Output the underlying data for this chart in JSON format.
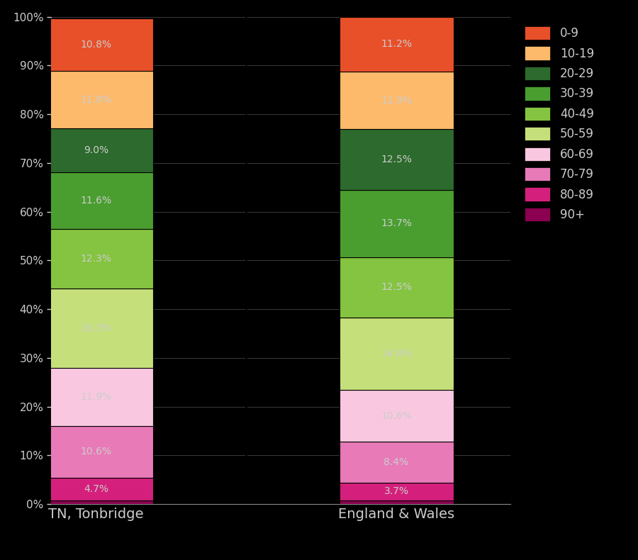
{
  "categories": [
    "TN, Tonbridge",
    "England & Wales"
  ],
  "age_groups_bottom_to_top": [
    "90+",
    "80-89",
    "70-79",
    "60-69",
    "50-59",
    "40-49",
    "30-39",
    "20-29",
    "10-19",
    "0-9"
  ],
  "colors": {
    "0-9": "#e8502a",
    "10-19": "#fdba6b",
    "20-29": "#2d6a2d",
    "30-39": "#4a9e30",
    "40-49": "#84c440",
    "50-59": "#c5e07a",
    "60-69": "#f9c8e0",
    "70-79": "#e87ab8",
    "80-89": "#d4207c",
    "90+": "#8b0050"
  },
  "tonbridge": {
    "90+": 0.7,
    "80-89": 4.7,
    "70-79": 10.6,
    "60-69": 11.9,
    "50-59": 16.3,
    "40-49": 12.3,
    "30-39": 11.6,
    "20-29": 9.0,
    "10-19": 11.8,
    "0-9": 10.8
  },
  "england_wales": {
    "90+": 0.7,
    "80-89": 3.7,
    "70-79": 8.4,
    "60-69": 10.6,
    "50-59": 14.8,
    "40-49": 12.5,
    "30-39": 13.7,
    "20-29": 12.5,
    "10-19": 11.9,
    "0-9": 11.2
  },
  "background_color": "#000000",
  "text_color": "#cccccc",
  "label_text_color": "#cccccc",
  "bar_positions": [
    0,
    1
  ],
  "bar_width": 0.38,
  "separator_x": 0.5,
  "xlim": [
    -0.15,
    1.38
  ],
  "ylim": [
    0,
    100
  ],
  "yticks": [
    0,
    10,
    20,
    30,
    40,
    50,
    60,
    70,
    80,
    90,
    100
  ],
  "label_fontsize": 10,
  "tick_fontsize": 11,
  "xticklabel_fontsize": 14,
  "legend_fontsize": 12,
  "skip_label_groups": [
    "90+"
  ]
}
